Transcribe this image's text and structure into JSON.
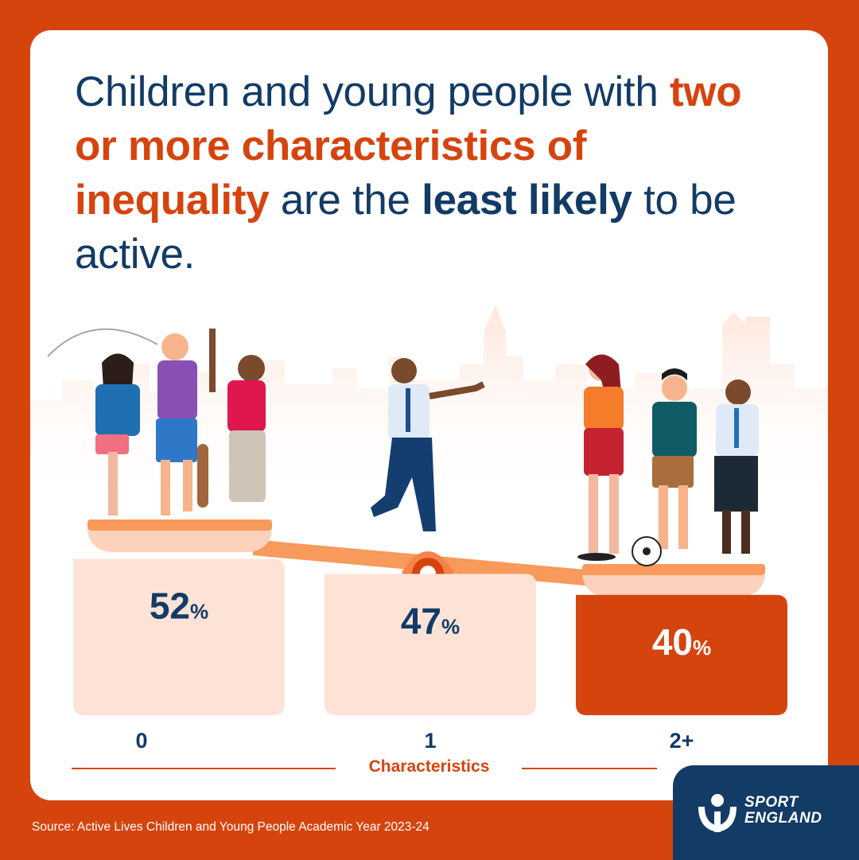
{
  "headline": {
    "part1": "Children and young people with ",
    "highlight": "two or more characteristics of inequality",
    "part2": " are the ",
    "strong": "least likely",
    "part3": " to be active."
  },
  "chart_data": {
    "type": "bar",
    "categories": [
      "0",
      "1",
      "2+"
    ],
    "values": [
      52,
      47,
      40
    ],
    "value_suffix": "%",
    "xlabel": "Characteristics",
    "title": "",
    "ylabel": "",
    "ylim": [
      0,
      60
    ],
    "bar_colors": [
      "#fde3d6",
      "#fde3d6",
      "#d6440e"
    ],
    "label_colors": [
      "#123b66",
      "#123b66",
      "#ffffff"
    ]
  },
  "source": "Source: Active Lives Children and Young People Academic Year 2023-24",
  "logo": {
    "line1": "SPORT",
    "line2": "ENGLAND"
  },
  "colors": {
    "accent": "#d6440e",
    "navy": "#123b66",
    "peach": "#fde3d6"
  }
}
